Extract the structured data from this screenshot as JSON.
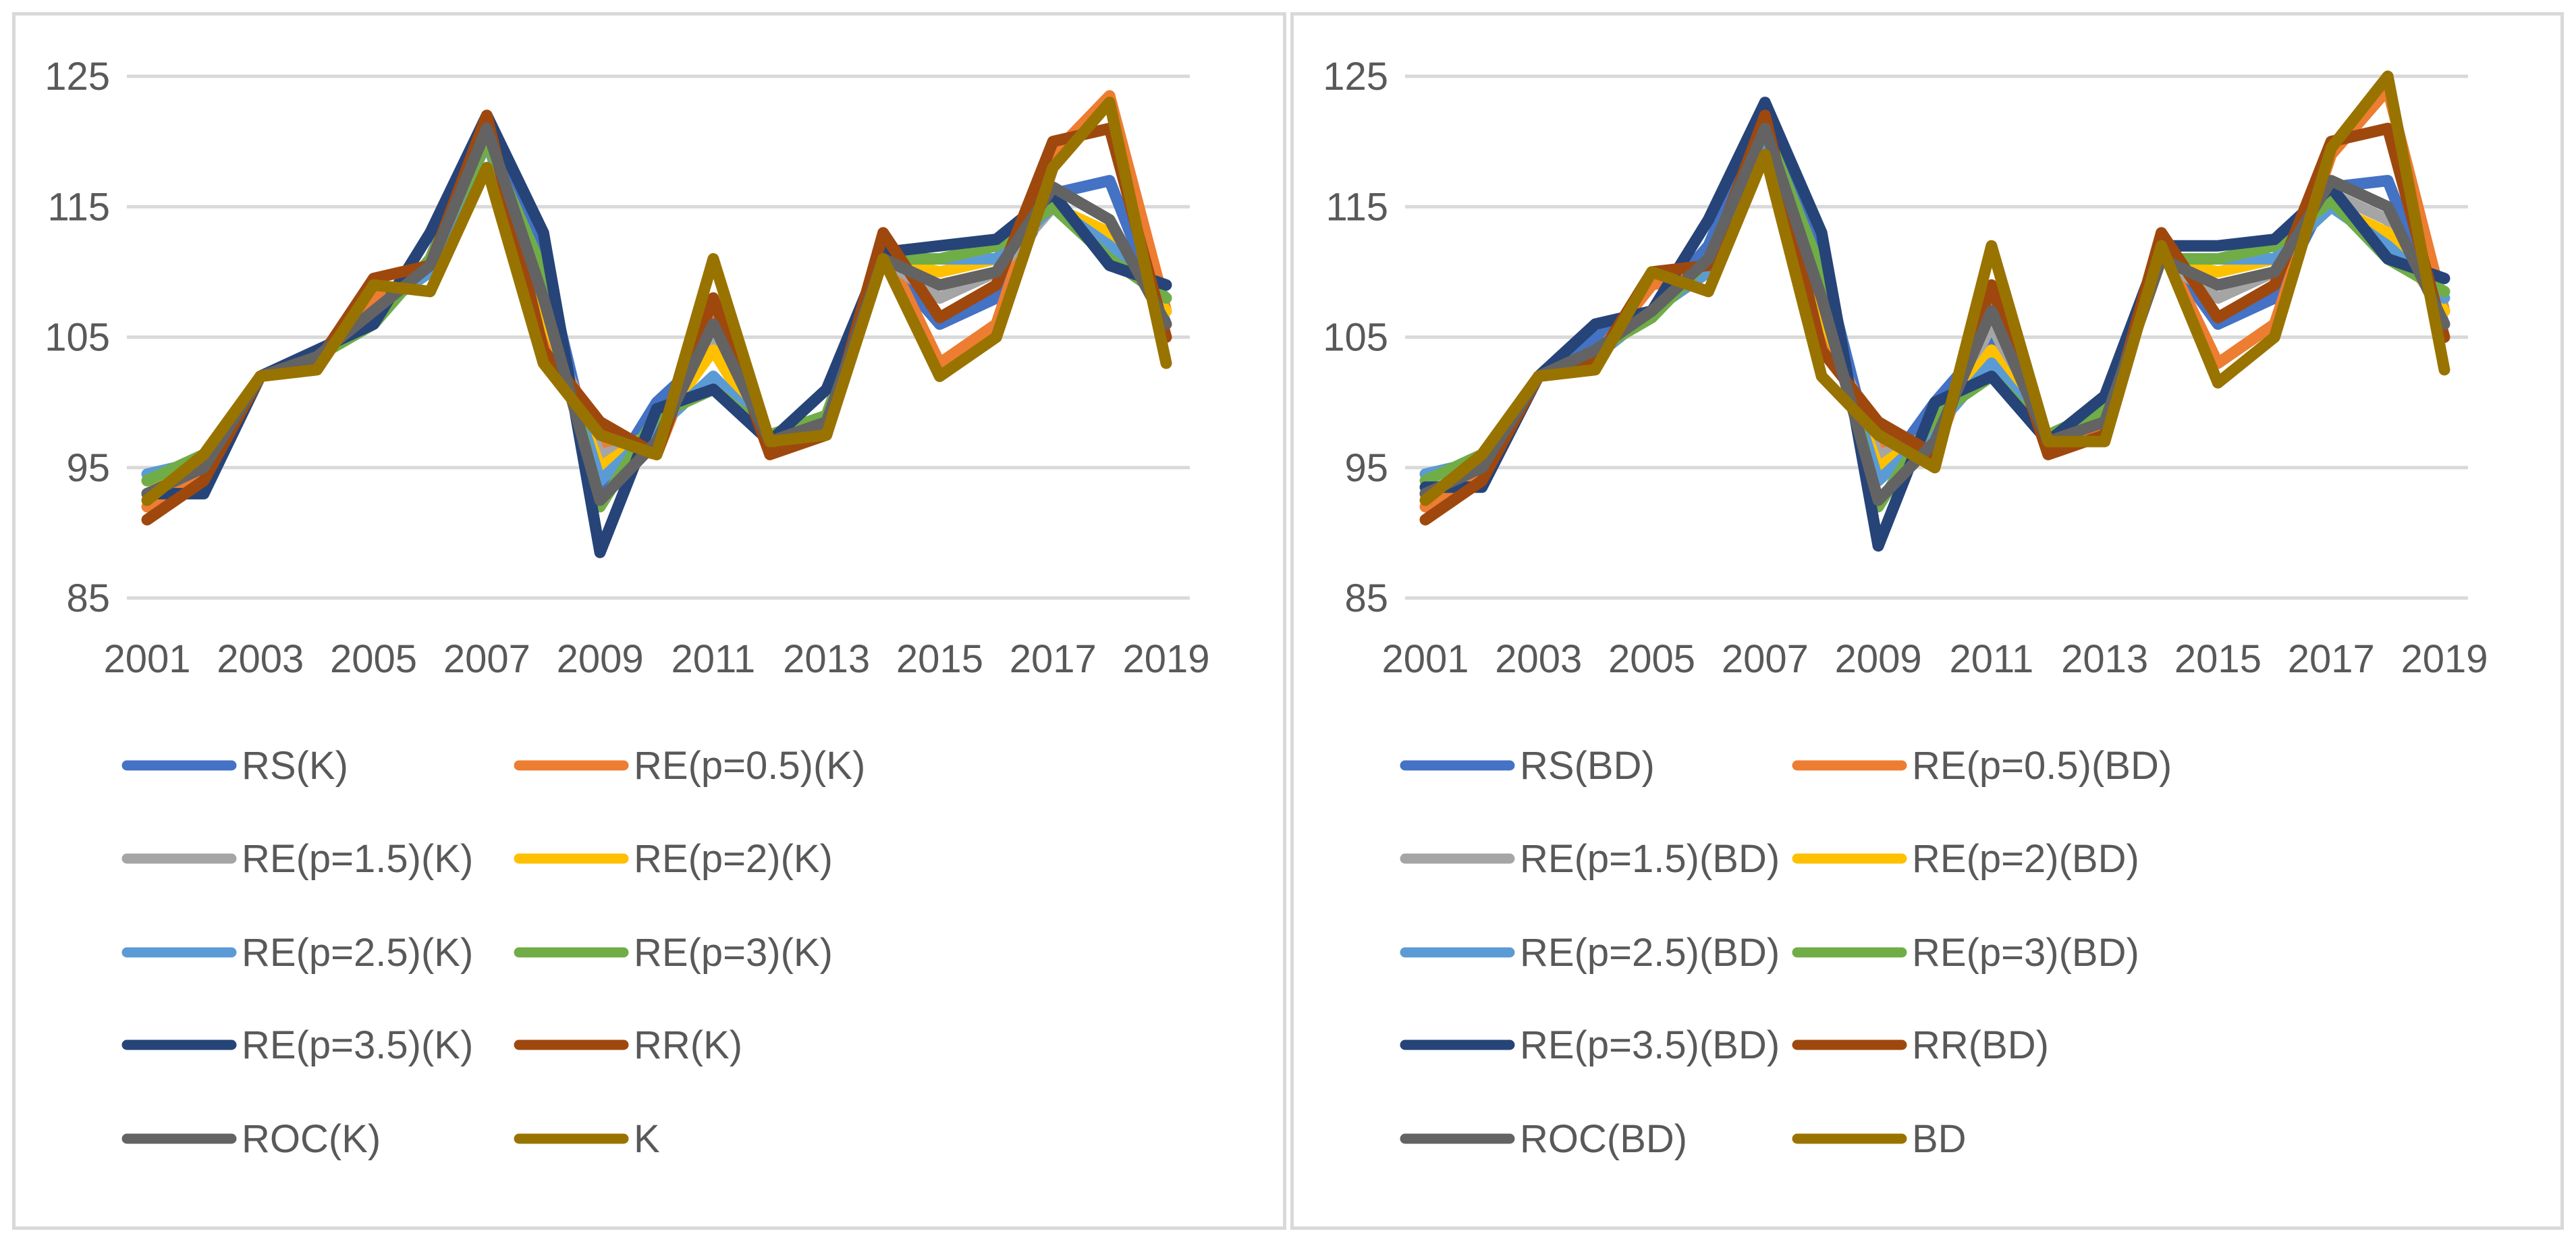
{
  "chart_data": [
    {
      "type": "line",
      "title": "",
      "xlabel": "",
      "ylabel": "",
      "ylim": [
        85,
        125
      ],
      "yticks": [
        "125",
        "115",
        "105",
        "95",
        "85"
      ],
      "ytick_values": [
        125,
        115,
        105,
        95,
        85
      ],
      "x": [
        2001,
        2002,
        2003,
        2004,
        2005,
        2006,
        2007,
        2008,
        2009,
        2010,
        2011,
        2012,
        2013,
        2014,
        2015,
        2016,
        2017,
        2018,
        2019
      ],
      "xtick_labels": [
        "2001",
        "2003",
        "2005",
        "2007",
        "2009",
        "2011",
        "2013",
        "2015",
        "2017",
        "2019"
      ],
      "grid": true,
      "legend_position": "bottom",
      "series": [
        {
          "name": "RS(K)",
          "color": "#4472c4",
          "values": [
            93,
            94,
            102,
            104,
            106,
            111,
            121,
            111,
            93,
            100,
            104,
            97,
            99,
            111,
            106,
            108,
            116,
            117,
            106
          ]
        },
        {
          "name": "RE(p=0.5)(K)",
          "color": "#ed7d31",
          "values": [
            92,
            95,
            102,
            103.5,
            108,
            110,
            121,
            106,
            97,
            96,
            107,
            96.5,
            98,
            112,
            103,
            106,
            119,
            123.5,
            107
          ]
        },
        {
          "name": "RE(p=1.5)(K)",
          "color": "#a5a5a5",
          "values": [
            93,
            95,
            102,
            103.5,
            107,
            110,
            121,
            107,
            96,
            97,
            105,
            97,
            98.5,
            111,
            108,
            110,
            115,
            113,
            107
          ]
        },
        {
          "name": "RE(p=2)(K)",
          "color": "#ffc000",
          "values": [
            94,
            95,
            102,
            103.5,
            107,
            110,
            120,
            107,
            95,
            98,
            104,
            97,
            98.5,
            111,
            110,
            111,
            115,
            113,
            107
          ]
        },
        {
          "name": "RE(p=2.5)(K)",
          "color": "#5b9bd5",
          "values": [
            94.5,
            95.5,
            102,
            103.5,
            107,
            110,
            120,
            108,
            94,
            98,
            102,
            97.5,
            99,
            111,
            111,
            111,
            115,
            112,
            108
          ]
        },
        {
          "name": "RE(p=3)(K)",
          "color": "#70ad47",
          "values": [
            94,
            96,
            102,
            103.5,
            106,
            111,
            120,
            110,
            92,
            99,
            101,
            97.5,
            99,
            111,
            111,
            112,
            115,
            111,
            108
          ]
        },
        {
          "name": "RE(p=3.5)(K)",
          "color": "#264478",
          "values": [
            93,
            93,
            102,
            104,
            106,
            113,
            122,
            113,
            88.5,
            99.5,
            101,
            97,
            101,
            111.5,
            112,
            112.5,
            116,
            110.5,
            109
          ]
        },
        {
          "name": "RR(K)",
          "color": "#9e480e",
          "values": [
            91,
            94,
            102,
            103,
            109.5,
            110.5,
            122,
            104,
            98.5,
            96,
            108,
            96,
            97.5,
            113,
            106.5,
            109,
            120,
            121,
            105
          ]
        },
        {
          "name": "ROC(K)",
          "color": "#636363",
          "values": [
            93,
            95,
            102,
            103.5,
            107,
            110.5,
            121,
            108,
            92.5,
            97,
            106,
            97,
            98.5,
            111,
            109,
            110,
            116.5,
            114,
            106
          ]
        },
        {
          "name": "K",
          "color": "#997300",
          "values": [
            92.5,
            96,
            102,
            102.5,
            109,
            108.5,
            118,
            103,
            97.5,
            96,
            111,
            97,
            97.5,
            111,
            102,
            105,
            118,
            123,
            103
          ]
        }
      ]
    },
    {
      "type": "line",
      "title": "",
      "xlabel": "",
      "ylabel": "",
      "ylim": [
        85,
        125
      ],
      "yticks": [
        "125",
        "115",
        "105",
        "95",
        "85"
      ],
      "ytick_values": [
        125,
        115,
        105,
        95,
        85
      ],
      "x": [
        2001,
        2002,
        2003,
        2004,
        2005,
        2006,
        2007,
        2008,
        2009,
        2010,
        2011,
        2012,
        2013,
        2014,
        2015,
        2016,
        2017,
        2018,
        2019
      ],
      "xtick_labels": [
        "2001",
        "2003",
        "2005",
        "2007",
        "2009",
        "2011",
        "2013",
        "2015",
        "2017",
        "2019"
      ],
      "grid": true,
      "legend_position": "bottom",
      "series": [
        {
          "name": "RS(BD)",
          "color": "#4472c4",
          "values": [
            93,
            94,
            102,
            105,
            107,
            112,
            122,
            111,
            94,
            100,
            105,
            97,
            99,
            112,
            106,
            108,
            116.5,
            117,
            106
          ]
        },
        {
          "name": "RE(p=0.5)(BD)",
          "color": "#ed7d31",
          "values": [
            92,
            95,
            102,
            103.5,
            109,
            110,
            121,
            106,
            97,
            96,
            108,
            96.5,
            98,
            112,
            103,
            106,
            119,
            124,
            107
          ]
        },
        {
          "name": "RE(p=1.5)(BD)",
          "color": "#a5a5a5",
          "values": [
            93,
            95,
            102,
            103.5,
            107,
            110,
            121,
            107,
            96,
            97,
            106,
            97,
            98.5,
            111,
            108,
            110,
            116,
            114,
            107
          ]
        },
        {
          "name": "RE(p=2)(BD)",
          "color": "#ffc000",
          "values": [
            94.5,
            95.5,
            102,
            103.5,
            107,
            110,
            120,
            107,
            95,
            98,
            104,
            97,
            98.5,
            111,
            110,
            111,
            115,
            113,
            107
          ]
        },
        {
          "name": "RE(p=2.5)(BD)",
          "color": "#5b9bd5",
          "values": [
            94.5,
            95.5,
            102,
            103.5,
            107,
            110,
            120,
            108,
            94,
            98,
            103,
            97.5,
            99,
            111,
            111,
            111,
            115,
            112,
            108
          ]
        },
        {
          "name": "RE(p=3)(BD)",
          "color": "#70ad47",
          "values": [
            94,
            96,
            102,
            104,
            106.5,
            111,
            121,
            110,
            92,
            99,
            102,
            97.5,
            99.5,
            111,
            111,
            112,
            115.5,
            111,
            108.5
          ]
        },
        {
          "name": "RE(p=3.5)(BD)",
          "color": "#264478",
          "values": [
            93.5,
            93.5,
            102,
            106,
            107,
            114,
            123,
            113,
            89,
            100,
            102,
            97,
            100.5,
            112,
            112,
            112.5,
            116.5,
            111,
            109.5
          ]
        },
        {
          "name": "RR(BD)",
          "color": "#9e480e",
          "values": [
            91,
            94,
            102,
            103,
            110,
            110.5,
            122,
            104,
            98.5,
            96,
            109,
            96,
            97.5,
            113,
            106.5,
            109,
            120,
            121,
            105
          ]
        },
        {
          "name": "ROC(BD)",
          "color": "#636363",
          "values": [
            93,
            95,
            102,
            104,
            107,
            111,
            121,
            108,
            92.5,
            97,
            107,
            97,
            98.5,
            111,
            109,
            110,
            117,
            115,
            106
          ]
        },
        {
          "name": "BD",
          "color": "#997300",
          "values": [
            92.5,
            96,
            102,
            102.5,
            110,
            108.5,
            119,
            102,
            97.5,
            95,
            112,
            97,
            97,
            112,
            101.5,
            105,
            119.5,
            125,
            102.5
          ]
        }
      ]
    }
  ]
}
